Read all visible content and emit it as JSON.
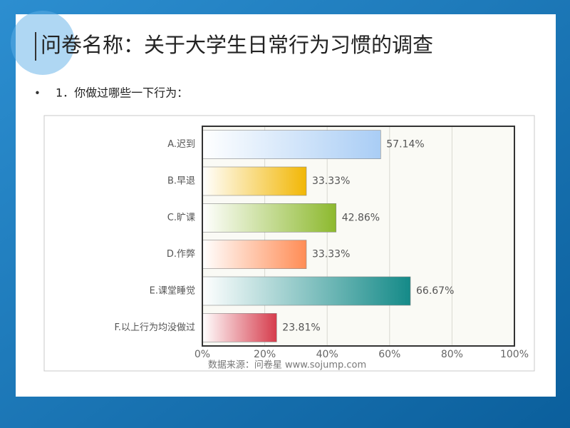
{
  "slide": {
    "title": "问卷名称：关于大学生日常行为习惯的调查",
    "bullet": "1．你做过哪些一下行为："
  },
  "chart_data": {
    "type": "bar",
    "orientation": "horizontal",
    "categories": [
      "A.迟到",
      "B.早退",
      "C.旷课",
      "D.作弊",
      "E.课堂睡觉",
      "F.以上行为均没做过"
    ],
    "values": [
      57.14,
      33.33,
      42.86,
      33.33,
      66.67,
      23.81
    ],
    "value_labels": [
      "57.14%",
      "33.33%",
      "42.86%",
      "33.33%",
      "66.67%",
      "23.81%"
    ],
    "colors": [
      "#a9cdf5",
      "#f2b705",
      "#8db92e",
      "#ff8c55",
      "#148a88",
      "#d63c4c"
    ],
    "xlim": [
      0,
      100
    ],
    "xticks": [
      {
        "value": 0,
        "label": "0%"
      },
      {
        "value": 20,
        "label": "20%"
      },
      {
        "value": 40,
        "label": "40%"
      },
      {
        "value": 60,
        "label": "60%"
      },
      {
        "value": 80,
        "label": "80%"
      },
      {
        "value": 100,
        "label": "100%"
      }
    ],
    "grid": true,
    "source": "数据来源：问卷星 www.sojump.com"
  }
}
